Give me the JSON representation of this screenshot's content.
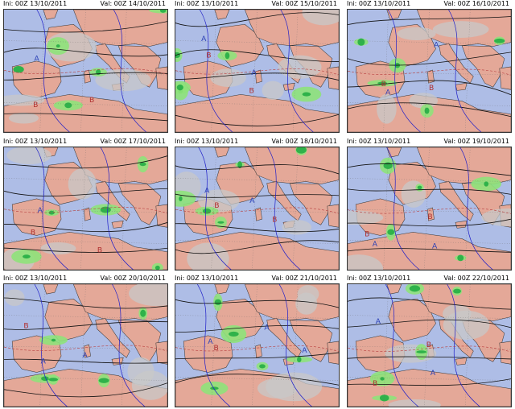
{
  "colors": {
    "sea": "#aebde6",
    "land": "#e4a898",
    "cloud": "#c8c8c8",
    "rain_light": "#8ee27a",
    "rain_mid": "#2fb24a",
    "rain_heavy": "#2f6fc7",
    "isobar": "#111111",
    "thickness": "#2020c8",
    "tcontour": "#b84040",
    "coast": "#333333"
  },
  "panels": [
    {
      "ini": "Ini: 00Z  13/10/2011",
      "val": "Val: 00Z  14/10/2011",
      "high_labels": [
        "A"
      ],
      "low_labels": [
        "B",
        "B"
      ]
    },
    {
      "ini": "Ini: 00Z  13/10/2011",
      "val": "Val: 00Z  15/10/2011",
      "high_labels": [
        "A",
        "A"
      ],
      "low_labels": [
        "B",
        "B"
      ]
    },
    {
      "ini": "Ini: 00Z  13/10/2011",
      "val": "Val: 00Z  16/10/2011",
      "high_labels": [
        "A",
        "A"
      ],
      "low_labels": [
        "B",
        "B"
      ]
    },
    {
      "ini": "Ini: 00Z  13/10/2011",
      "val": "Val: 00Z  17/10/2011",
      "high_labels": [
        "A"
      ],
      "low_labels": [
        "B",
        "B"
      ]
    },
    {
      "ini": "Ini: 00Z  13/10/2011",
      "val": "Val: 00Z  18/10/2011",
      "high_labels": [
        "A",
        "A"
      ],
      "low_labels": [
        "B",
        "B"
      ]
    },
    {
      "ini": "Ini: 00Z  13/10/2011",
      "val": "Val: 00Z  19/10/2011",
      "high_labels": [
        "A",
        "A"
      ],
      "low_labels": [
        "B",
        "B"
      ]
    },
    {
      "ini": "Ini: 00Z  13/10/2011",
      "val": "Val: 00Z  20/10/2011",
      "high_labels": [
        "A",
        "A"
      ],
      "low_labels": [
        "B"
      ]
    },
    {
      "ini": "Ini: 00Z  13/10/2011",
      "val": "Val: 00Z  21/10/2011",
      "high_labels": [
        "A",
        "A",
        "A"
      ],
      "low_labels": [
        "B"
      ]
    },
    {
      "ini": "Ini: 00Z  13/10/2011",
      "val": "Val: 00Z  22/10/2011",
      "high_labels": [
        "A",
        "A"
      ],
      "low_labels": [
        "B",
        "B"
      ]
    }
  ]
}
